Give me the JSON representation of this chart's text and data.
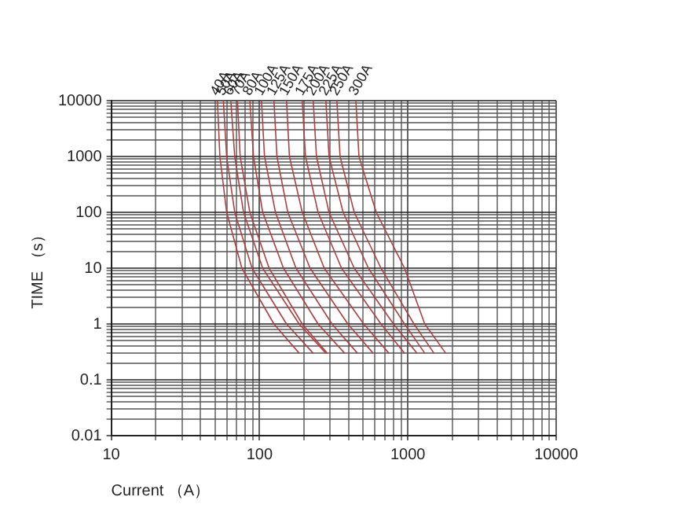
{
  "chart_data": {
    "type": "line",
    "xlabel": "Current （A）",
    "ylabel": "TIME （s）",
    "log": "xy",
    "grid": true,
    "legend": false,
    "marker": "none",
    "line_style": "solid",
    "xlim": [
      10,
      10000
    ],
    "ylim": [
      0.01,
      10000
    ],
    "xticks": [
      10,
      {
        "value": 20,
        "label": null
      },
      {
        "value": 30,
        "label": null
      },
      {
        "value": 40,
        "label": null
      },
      {
        "value": 50,
        "label": null
      },
      {
        "value": 60,
        "label": null
      },
      {
        "value": 70,
        "label": null
      },
      {
        "value": 80,
        "label": null
      },
      {
        "value": 90,
        "label": null
      },
      100,
      {
        "value": 200,
        "label": null
      },
      {
        "value": 300,
        "label": null
      },
      {
        "value": 400,
        "label": null
      },
      {
        "value": 500,
        "label": null
      },
      {
        "value": 600,
        "label": null
      },
      {
        "value": 700,
        "label": null
      },
      {
        "value": 800,
        "label": null
      },
      {
        "value": 900,
        "label": null
      },
      1000,
      {
        "value": 2000,
        "label": null
      },
      {
        "value": 3000,
        "label": null
      },
      {
        "value": 4000,
        "label": null
      },
      {
        "value": 5000,
        "label": null
      },
      {
        "value": 6000,
        "label": null
      },
      {
        "value": 7000,
        "label": null
      },
      {
        "value": 8000,
        "label": null
      },
      {
        "value": 9000,
        "label": null
      },
      10000
    ],
    "yticks": [
      0.01,
      {
        "value": 0.02,
        "label": null
      },
      {
        "value": 0.03,
        "label": null
      },
      {
        "value": 0.04,
        "label": null
      },
      {
        "value": 0.05,
        "label": null
      },
      {
        "value": 0.06,
        "label": null
      },
      {
        "value": 0.07,
        "label": null
      },
      {
        "value": 0.08,
        "label": null
      },
      {
        "value": 0.09,
        "label": null
      },
      0.1,
      {
        "value": 0.2,
        "label": null
      },
      {
        "value": 0.3,
        "label": null
      },
      {
        "value": 0.4,
        "label": null
      },
      {
        "value": 0.5,
        "label": null
      },
      {
        "value": 0.6,
        "label": null
      },
      {
        "value": 0.7,
        "label": null
      },
      {
        "value": 0.8,
        "label": null
      },
      {
        "value": 0.9,
        "label": null
      },
      1,
      {
        "value": 2,
        "label": null
      },
      {
        "value": 3,
        "label": null
      },
      {
        "value": 4,
        "label": null
      },
      {
        "value": 5,
        "label": null
      },
      {
        "value": 6,
        "label": null
      },
      {
        "value": 7,
        "label": null
      },
      {
        "value": 8,
        "label": null
      },
      {
        "value": 9,
        "label": null
      },
      10,
      {
        "value": 20,
        "label": null
      },
      {
        "value": 30,
        "label": null
      },
      {
        "value": 40,
        "label": null
      },
      {
        "value": 50,
        "label": null
      },
      {
        "value": 60,
        "label": null
      },
      {
        "value": 70,
        "label": null
      },
      {
        "value": 80,
        "label": null
      },
      {
        "value": 90,
        "label": null
      },
      100,
      {
        "value": 200,
        "label": null
      },
      {
        "value": 300,
        "label": null
      },
      {
        "value": 400,
        "label": null
      },
      {
        "value": 500,
        "label": null
      },
      {
        "value": 600,
        "label": null
      },
      {
        "value": 700,
        "label": null
      },
      {
        "value": 800,
        "label": null
      },
      {
        "value": 900,
        "label": null
      },
      1000,
      {
        "value": 2000,
        "label": null
      },
      {
        "value": 3000,
        "label": null
      },
      {
        "value": 4000,
        "label": null
      },
      {
        "value": 5000,
        "label": null
      },
      {
        "value": 6000,
        "label": null
      },
      {
        "value": 7000,
        "label": null
      },
      {
        "value": 8000,
        "label": null
      },
      {
        "value": 9000,
        "label": null
      },
      10000
    ],
    "series": [
      {
        "name": "40A",
        "color": "#b04040",
        "x": [
          52,
          54,
          60,
          76,
          125,
          185
        ],
        "values": [
          10000,
          1000,
          100,
          10,
          1,
          0.3
        ]
      },
      {
        "name": "50A",
        "color": "#b04040",
        "x": [
          57,
          60,
          68,
          89,
          152,
          230
        ],
        "values": [
          10000,
          1000,
          100,
          10,
          1,
          0.3
        ]
      },
      {
        "name": "60A",
        "color": "#b04040",
        "x": [
          64,
          68,
          78,
          105,
          185,
          280
        ],
        "values": [
          10000,
          1000,
          100,
          10,
          1,
          0.3
        ]
      },
      {
        "name": "70A",
        "color": "#b04040",
        "x": [
          71,
          74,
          86,
          116,
          194,
          286
        ],
        "values": [
          10000,
          1000,
          100,
          10,
          1,
          0.3
        ]
      },
      {
        "name": "80A",
        "color": "#b04040",
        "x": [
          86,
          91,
          105,
          145,
          248,
          375
        ],
        "values": [
          10000,
          1000,
          100,
          10,
          1,
          0.3
        ]
      },
      {
        "name": "100A",
        "color": "#b04040",
        "x": [
          103,
          108,
          128,
          176,
          308,
          457
        ],
        "values": [
          10000,
          1000,
          100,
          10,
          1,
          0.3
        ]
      },
      {
        "name": "125A",
        "color": "#b04040",
        "x": [
          125,
          131,
          155,
          219,
          394,
          583
        ],
        "values": [
          10000,
          1000,
          100,
          10,
          1,
          0.3
        ]
      },
      {
        "name": "150A",
        "color": "#b04040",
        "x": [
          152,
          159,
          194,
          273,
          504,
          745
        ],
        "values": [
          10000,
          1000,
          100,
          10,
          1,
          0.3
        ]
      },
      {
        "name": "175A",
        "color": "#b04040",
        "x": [
          194,
          204,
          248,
          357,
          659,
          950
        ],
        "values": [
          10000,
          1000,
          100,
          10,
          1,
          0.3
        ]
      },
      {
        "name": "200A",
        "color": "#b04040",
        "x": [
          230,
          242,
          294,
          435,
          800,
          1150
        ],
        "values": [
          10000,
          1000,
          100,
          10,
          1,
          0.3
        ]
      },
      {
        "name": "225A",
        "color": "#b04040",
        "x": [
          280,
          294,
          366,
          542,
          950,
          1300
        ],
        "values": [
          10000,
          1000,
          100,
          10,
          1,
          0.3
        ]
      },
      {
        "name": "250A",
        "color": "#b04040",
        "x": [
          332,
          349,
          435,
          659,
          1100,
          1500
        ],
        "values": [
          10000,
          1000,
          100,
          10,
          1,
          0.3
        ]
      },
      {
        "name": "300A",
        "color": "#b04040",
        "x": [
          446,
          468,
          612,
          950,
          1300,
          1800
        ],
        "values": [
          10000,
          1000,
          100,
          10,
          1,
          0.3
        ]
      }
    ]
  }
}
